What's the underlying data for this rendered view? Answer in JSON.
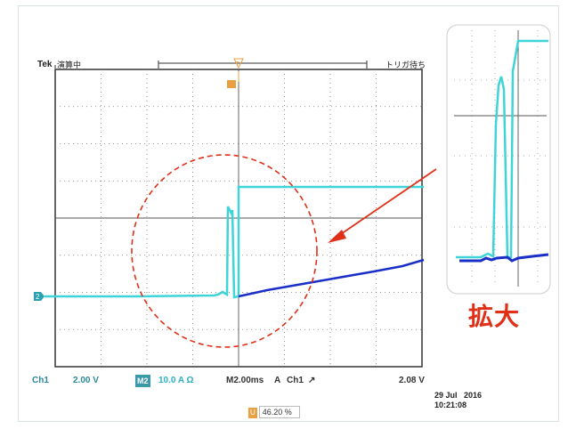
{
  "scope": {
    "brand": "Tek",
    "acq_status": "演算中",
    "trigger_status": "トリガ待ち",
    "trigger_marker": "T",
    "channel_marker": "2"
  },
  "footer": {
    "ch1_label": "Ch1",
    "ch1_scale": "2.00 V",
    "math_badge": "M2",
    "math_scale": "10.0 A Ω",
    "timebase": "M2.00ms",
    "trigger_label": "A",
    "trigger_source": "Ch1",
    "trigger_slope": "↗",
    "trigger_level": "2.08 V"
  },
  "datetime": {
    "date": "29 Jul   2016",
    "time": "10:21:08"
  },
  "trigger_position": {
    "marker": "U",
    "value": "46.20 %"
  },
  "annotation": {
    "zoom_label": "拡大"
  },
  "colors": {
    "cyan_trace": "#3fd4d8",
    "blue_trace": "#1a2fc8",
    "annotation_red": "#e03018",
    "grid": "#444444",
    "trigger_orange": "#e8a040"
  }
}
